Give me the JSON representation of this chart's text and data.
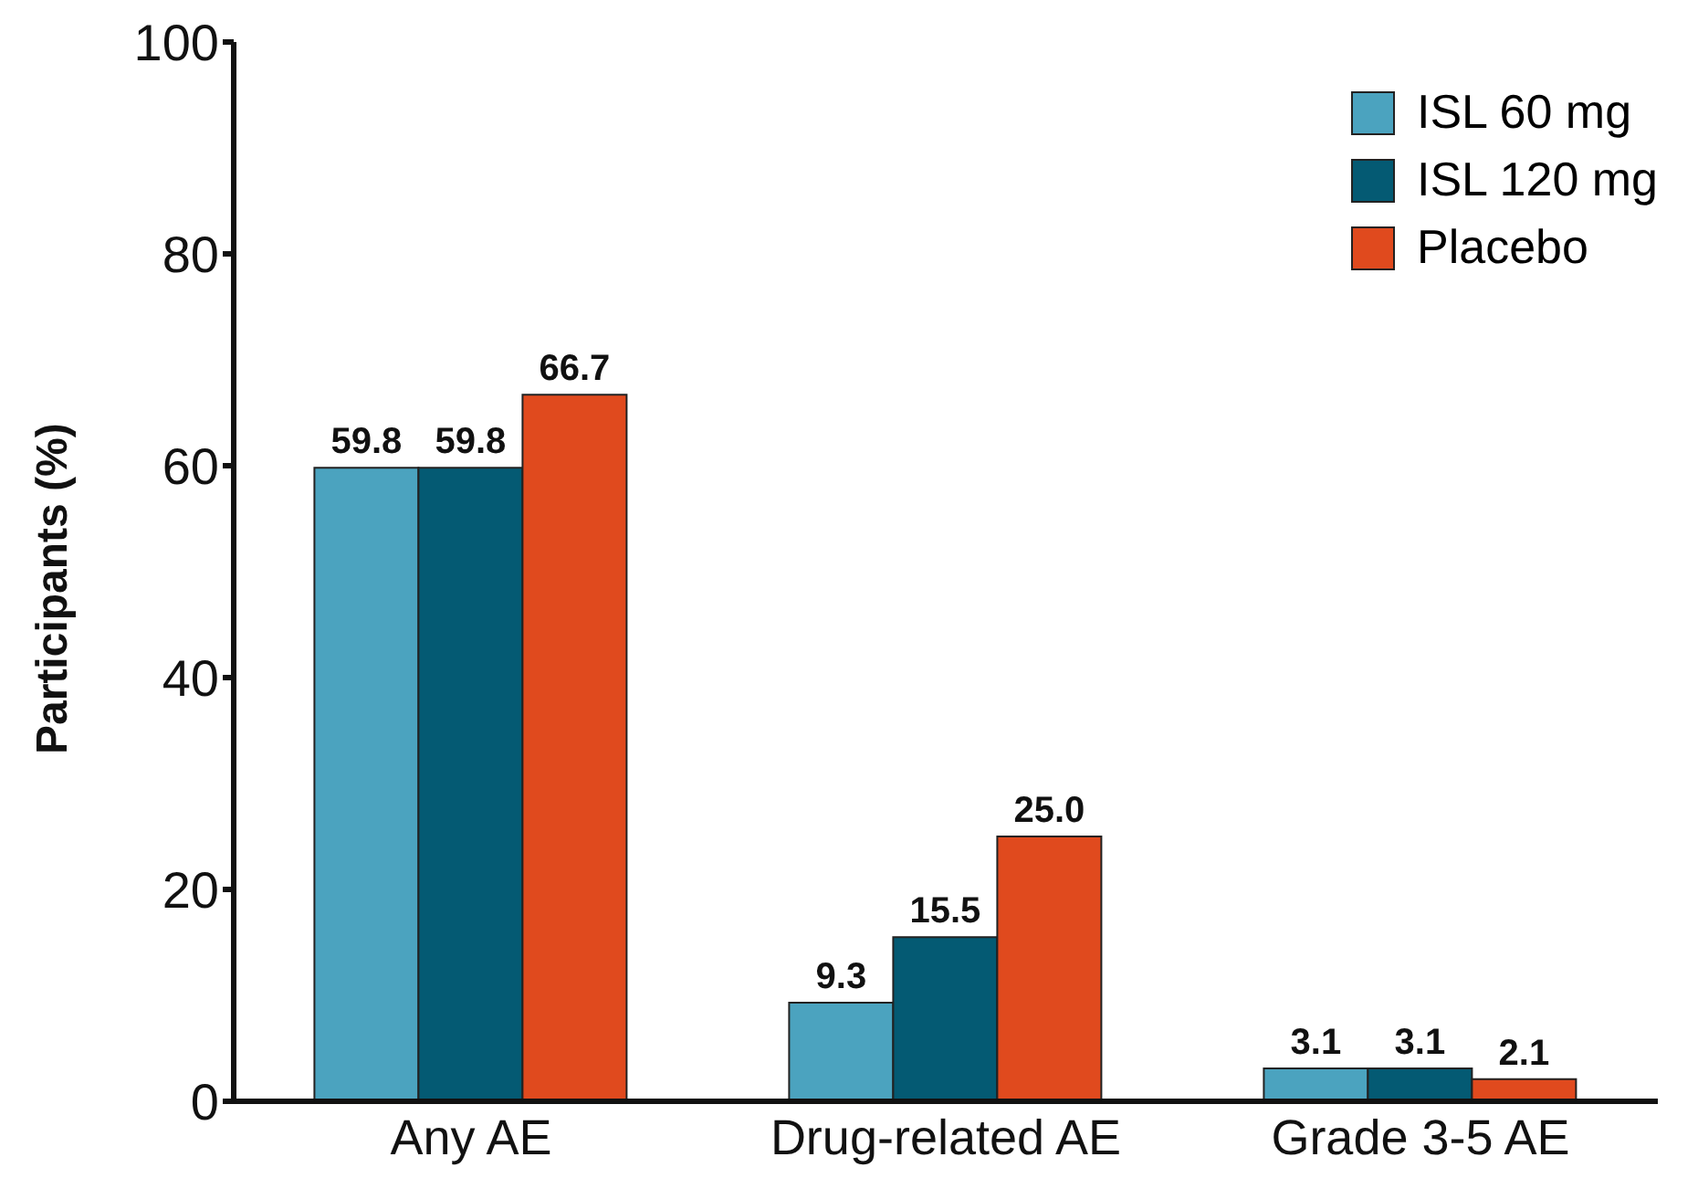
{
  "chart_data": {
    "type": "bar",
    "ylabel": "Participants (%)",
    "categories": [
      "Any AE",
      "Drug-related AE",
      "Grade 3-5 AE"
    ],
    "series": [
      {
        "name": "ISL 60 mg",
        "color": "#4ba3bf",
        "values": [
          59.8,
          9.3,
          3.1
        ]
      },
      {
        "name": "ISL 120 mg",
        "color": "#045a73",
        "values": [
          59.8,
          15.5,
          3.1
        ]
      },
      {
        "name": "Placebo",
        "color": "#e04a1e",
        "values": [
          66.7,
          25.0,
          2.1
        ]
      }
    ],
    "value_labels": [
      [
        "59.8",
        "9.3",
        "3.1"
      ],
      [
        "59.8",
        "15.5",
        "3.1"
      ],
      [
        "66.7",
        "25.0",
        "2.1"
      ]
    ],
    "ylim": [
      0,
      100
    ],
    "yticks": [
      0,
      20,
      40,
      60,
      80,
      100
    ],
    "legend": "top right"
  }
}
